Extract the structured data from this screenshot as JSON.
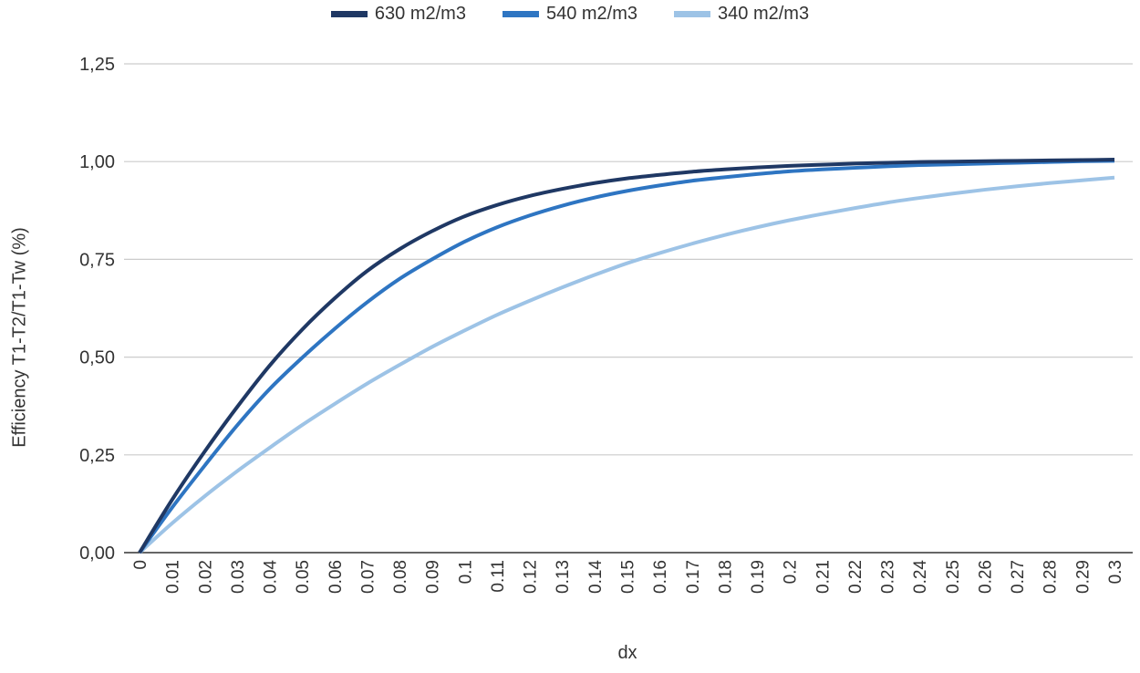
{
  "chart_data": {
    "type": "line",
    "title": "",
    "xlabel": "dx",
    "ylabel": "Efficiency  T1-T2/T1-Tw (%)",
    "ylim": [
      0,
      1.25
    ],
    "yticks": [
      "0,00",
      "0,25",
      "0,50",
      "0,75",
      "1,00",
      "1,25"
    ],
    "ytick_values": [
      0,
      0.25,
      0.5,
      0.75,
      1.0,
      1.25
    ],
    "xlim": [
      0,
      0.3
    ],
    "xtick_labels": [
      "0",
      "0.01",
      "0.02",
      "0.03",
      "0.04",
      "0.05",
      "0.06",
      "0.07",
      "0.08",
      "0.09",
      "0.1",
      "0.11",
      "0.12",
      "0.13",
      "0.14",
      "0.15",
      "0.16",
      "0.17",
      "0.18",
      "0.19",
      "0.2",
      "0.21",
      "0.22",
      "0.23",
      "0.24",
      "0.25",
      "0.26",
      "0.27",
      "0.28",
      "0.29",
      "0.3"
    ],
    "x": [
      0,
      0.01,
      0.02,
      0.03,
      0.04,
      0.05,
      0.06,
      0.07,
      0.08,
      0.09,
      0.1,
      0.11,
      0.12,
      0.13,
      0.14,
      0.15,
      0.16,
      0.17,
      0.18,
      0.19,
      0.2,
      0.21,
      0.22,
      0.23,
      0.24,
      0.25,
      0.26,
      0.27,
      0.28,
      0.29,
      0.3
    ],
    "grid": true,
    "legend_position": "top",
    "series": [
      {
        "name": "630 m2/m3",
        "color": "#1f3864",
        "values": [
          0,
          0.135,
          0.258,
          0.372,
          0.478,
          0.57,
          0.65,
          0.72,
          0.776,
          0.822,
          0.86,
          0.889,
          0.912,
          0.93,
          0.945,
          0.957,
          0.966,
          0.974,
          0.98,
          0.985,
          0.989,
          0.992,
          0.995,
          0.997,
          0.999,
          1.0,
          1.001,
          1.002,
          1.003,
          1.004,
          1.005
        ]
      },
      {
        "name": "540 m2/m3",
        "color": "#2e75c2",
        "values": [
          0,
          0.115,
          0.222,
          0.325,
          0.418,
          0.498,
          0.572,
          0.64,
          0.7,
          0.75,
          0.795,
          0.832,
          0.862,
          0.887,
          0.908,
          0.925,
          0.939,
          0.951,
          0.96,
          0.968,
          0.975,
          0.98,
          0.984,
          0.988,
          0.991,
          0.993,
          0.995,
          0.997,
          0.999,
          1.001,
          1.002
        ]
      },
      {
        "name": "340 m2/m3",
        "color": "#9dc3e6",
        "values": [
          0,
          0.075,
          0.144,
          0.208,
          0.268,
          0.326,
          0.38,
          0.432,
          0.48,
          0.526,
          0.568,
          0.608,
          0.644,
          0.678,
          0.71,
          0.74,
          0.766,
          0.79,
          0.812,
          0.832,
          0.85,
          0.866,
          0.881,
          0.895,
          0.907,
          0.918,
          0.928,
          0.937,
          0.945,
          0.952,
          0.959
        ]
      }
    ]
  }
}
